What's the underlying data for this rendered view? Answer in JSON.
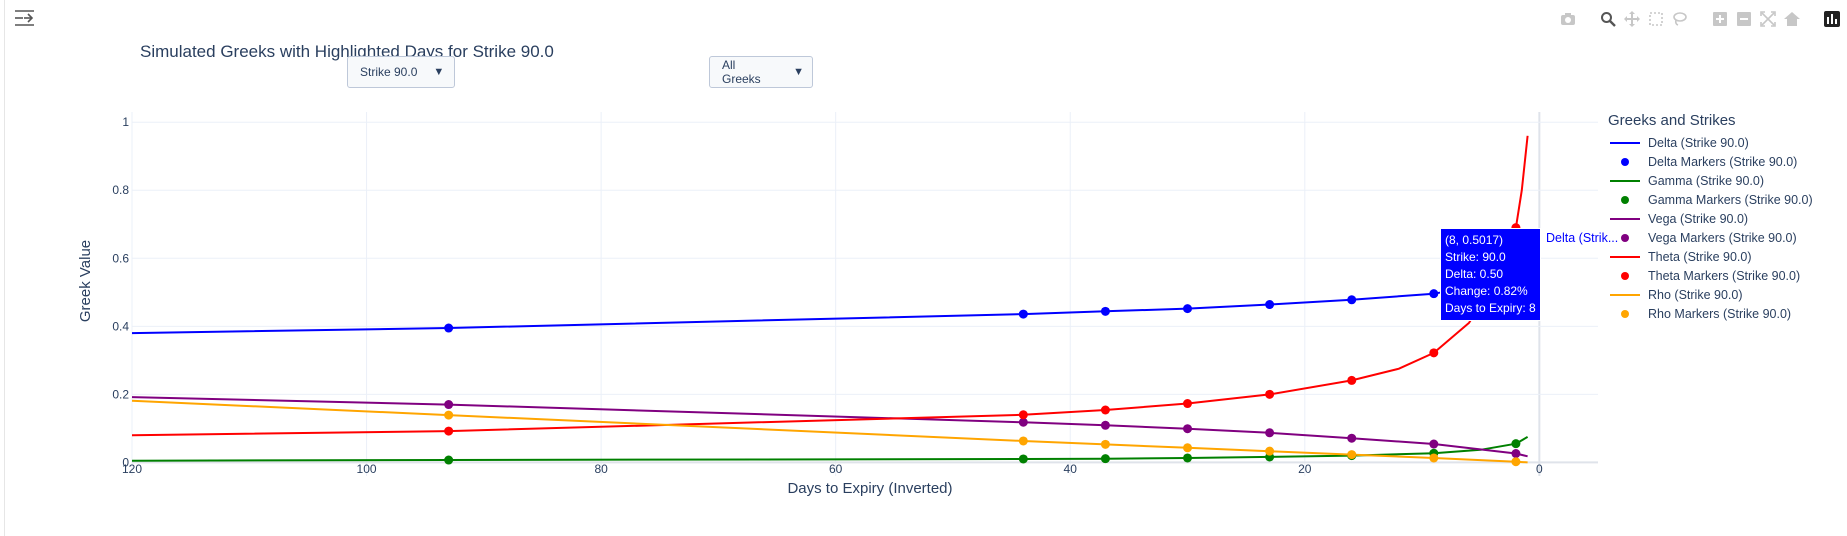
{
  "toolbar": {
    "sidebar_icon": "sidebar-toggle-icon",
    "modebar_icons": [
      "camera-icon",
      "zoom-icon",
      "pan-icon",
      "box-select-icon",
      "lasso-select-icon",
      "zoom-in-icon",
      "zoom-out-icon",
      "autoscale-icon",
      "reset-axes-icon",
      "plotly-logo-icon"
    ]
  },
  "dropdowns": {
    "strike_label": "Strike 90.0",
    "greeks_label": "All Greeks"
  },
  "legend": {
    "title": "Greeks and Strikes",
    "items": [
      {
        "label": "Delta (Strike 90.0)",
        "kind": "line",
        "color": "#0000ff"
      },
      {
        "label": "Delta Markers (Strike 90.0)",
        "kind": "marker",
        "color": "#0000ff"
      },
      {
        "label": "Gamma (Strike 90.0)",
        "kind": "line",
        "color": "#008000"
      },
      {
        "label": "Gamma Markers (Strike 90.0)",
        "kind": "marker",
        "color": "#008000"
      },
      {
        "label": "Vega (Strike 90.0)",
        "kind": "line",
        "color": "#800080"
      },
      {
        "label": "Vega Markers (Strike 90.0)",
        "kind": "marker",
        "color": "#800080"
      },
      {
        "label": "Theta (Strike 90.0)",
        "kind": "line",
        "color": "#ff0000"
      },
      {
        "label": "Theta Markers (Strike 90.0)",
        "kind": "marker",
        "color": "#ff0000"
      },
      {
        "label": "Rho (Strike 90.0)",
        "kind": "line",
        "color": "#ffa500"
      },
      {
        "label": "Rho Markers (Strike 90.0)",
        "kind": "marker",
        "color": "#ffa500"
      }
    ]
  },
  "hover": {
    "lines": [
      "(8, 0.5017)",
      "Strike: 90.0",
      "Delta: 0.50",
      "Change: 0.82%",
      "Days to Expiry: 8"
    ],
    "trace_name": "Delta (Strik..."
  },
  "chart_data": {
    "type": "line",
    "title": "Simulated Greeks with Highlighted Days for Strike 90.0",
    "xlabel": "Days to Expiry (Inverted)",
    "ylabel": "Greek Value",
    "xlim": [
      120,
      -5
    ],
    "ylim": [
      -0.04,
      1.03
    ],
    "x_reversed": true,
    "grid": true,
    "legend_position": "right",
    "xticks": [
      120,
      100,
      80,
      60,
      40,
      20,
      0
    ],
    "yticks": [
      0,
      0.2,
      0.4,
      0.6,
      0.8,
      1
    ],
    "ytick_labels": [
      "0",
      "0.2",
      "0.4",
      "0.6",
      "0.8",
      "1"
    ],
    "series": [
      {
        "name": "Delta (Strike 90.0)",
        "color": "#0000ff",
        "line": [
          [
            120,
            0.38
          ],
          [
            93,
            0.395
          ],
          [
            44,
            0.436
          ],
          [
            37,
            0.444
          ],
          [
            30,
            0.452
          ],
          [
            23,
            0.464
          ],
          [
            16,
            0.478
          ],
          [
            9,
            0.496
          ],
          [
            8,
            0.5017
          ],
          [
            5,
            0.508
          ],
          [
            1,
            0.515
          ]
        ],
        "markers": [
          [
            93,
            0.395
          ],
          [
            44,
            0.436
          ],
          [
            37,
            0.444
          ],
          [
            30,
            0.452
          ],
          [
            23,
            0.464
          ],
          [
            16,
            0.478
          ],
          [
            9,
            0.496
          ]
        ]
      },
      {
        "name": "Gamma (Strike 90.0)",
        "color": "#008000",
        "line": [
          [
            120,
            0.005
          ],
          [
            93,
            0.007
          ],
          [
            44,
            0.01
          ],
          [
            37,
            0.011
          ],
          [
            30,
            0.013
          ],
          [
            23,
            0.016
          ],
          [
            16,
            0.02
          ],
          [
            9,
            0.027
          ],
          [
            5,
            0.037
          ],
          [
            2,
            0.055
          ],
          [
            1,
            0.075
          ]
        ],
        "markers": [
          [
            93,
            0.007
          ],
          [
            44,
            0.01
          ],
          [
            37,
            0.011
          ],
          [
            30,
            0.013
          ],
          [
            23,
            0.016
          ],
          [
            16,
            0.02
          ],
          [
            9,
            0.027
          ],
          [
            2,
            0.055
          ]
        ]
      },
      {
        "name": "Vega (Strike 90.0)",
        "color": "#800080",
        "line": [
          [
            120,
            0.192
          ],
          [
            93,
            0.17
          ],
          [
            44,
            0.118
          ],
          [
            37,
            0.109
          ],
          [
            30,
            0.099
          ],
          [
            23,
            0.087
          ],
          [
            16,
            0.071
          ],
          [
            9,
            0.054
          ],
          [
            2,
            0.026
          ],
          [
            1,
            0.018
          ]
        ],
        "markers": [
          [
            93,
            0.17
          ],
          [
            44,
            0.118
          ],
          [
            37,
            0.109
          ],
          [
            30,
            0.099
          ],
          [
            23,
            0.087
          ],
          [
            16,
            0.071
          ],
          [
            9,
            0.054
          ],
          [
            2,
            0.026
          ]
        ]
      },
      {
        "name": "Theta (Strike 90.0)",
        "color": "#ff0000",
        "line": [
          [
            120,
            0.08
          ],
          [
            93,
            0.092
          ],
          [
            44,
            0.14
          ],
          [
            37,
            0.154
          ],
          [
            30,
            0.173
          ],
          [
            23,
            0.2
          ],
          [
            16,
            0.241
          ],
          [
            12,
            0.275
          ],
          [
            9,
            0.322
          ],
          [
            6,
            0.41
          ],
          [
            4,
            0.52
          ],
          [
            2,
            0.69
          ],
          [
            1.5,
            0.8
          ],
          [
            1,
            0.96
          ]
        ],
        "markers": [
          [
            93,
            0.092
          ],
          [
            44,
            0.14
          ],
          [
            37,
            0.154
          ],
          [
            30,
            0.173
          ],
          [
            23,
            0.2
          ],
          [
            16,
            0.241
          ],
          [
            9,
            0.322
          ],
          [
            2,
            0.69
          ]
        ]
      },
      {
        "name": "Rho (Strike 90.0)",
        "color": "#ffa500",
        "line": [
          [
            120,
            0.181
          ],
          [
            93,
            0.139
          ],
          [
            44,
            0.063
          ],
          [
            37,
            0.053
          ],
          [
            30,
            0.043
          ],
          [
            23,
            0.033
          ],
          [
            16,
            0.023
          ],
          [
            9,
            0.013
          ],
          [
            2,
            0.002
          ],
          [
            1,
            0.0
          ]
        ],
        "markers": [
          [
            93,
            0.139
          ],
          [
            44,
            0.063
          ],
          [
            37,
            0.053
          ],
          [
            30,
            0.043
          ],
          [
            23,
            0.033
          ],
          [
            16,
            0.023
          ],
          [
            9,
            0.013
          ],
          [
            2,
            0.002
          ]
        ]
      }
    ]
  }
}
